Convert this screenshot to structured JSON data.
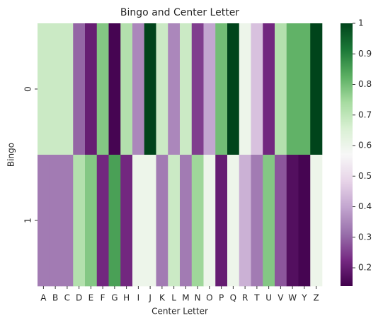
{
  "chart_data": {
    "type": "heatmap",
    "title": "Bingo and Center Letter",
    "x_label": "Center Letter",
    "y_label": "Bingo",
    "categories": [
      "A",
      "B",
      "C",
      "D",
      "E",
      "F",
      "G",
      "H",
      "I",
      "J",
      "K",
      "L",
      "M",
      "N",
      "O",
      "P",
      "Q",
      "R",
      "T",
      "U",
      "V",
      "W",
      "Y",
      "Z"
    ],
    "rows": [
      "0",
      "1"
    ],
    "values": [
      [
        0.68,
        0.68,
        0.68,
        0.3,
        0.2,
        0.78,
        0.15,
        0.72,
        0.35,
        1.0,
        0.68,
        0.35,
        0.68,
        0.25,
        0.4,
        0.8,
        1.0,
        0.6,
        0.45,
        0.22,
        0.72,
        0.82,
        0.82,
        1.0
      ],
      [
        0.33,
        0.33,
        0.33,
        0.72,
        0.78,
        0.22,
        0.85,
        0.22,
        0.6,
        0.6,
        0.33,
        0.68,
        0.33,
        0.75,
        0.6,
        0.2,
        0.6,
        0.42,
        0.33,
        0.78,
        0.28,
        0.17,
        0.15,
        0.6
      ]
    ],
    "colormap": [
      "#40004b",
      "#762a83",
      "#9970ab",
      "#c2a5cf",
      "#e7d4e8",
      "#f7f7f7",
      "#d9f0d3",
      "#a6dba0",
      "#5aae61",
      "#1b7837",
      "#00441b"
    ],
    "clim": [
      0.14,
      1.0
    ],
    "cticks": [
      0.2,
      0.3,
      0.4,
      0.5,
      0.6,
      0.7,
      0.8,
      0.9,
      1.0
    ]
  }
}
